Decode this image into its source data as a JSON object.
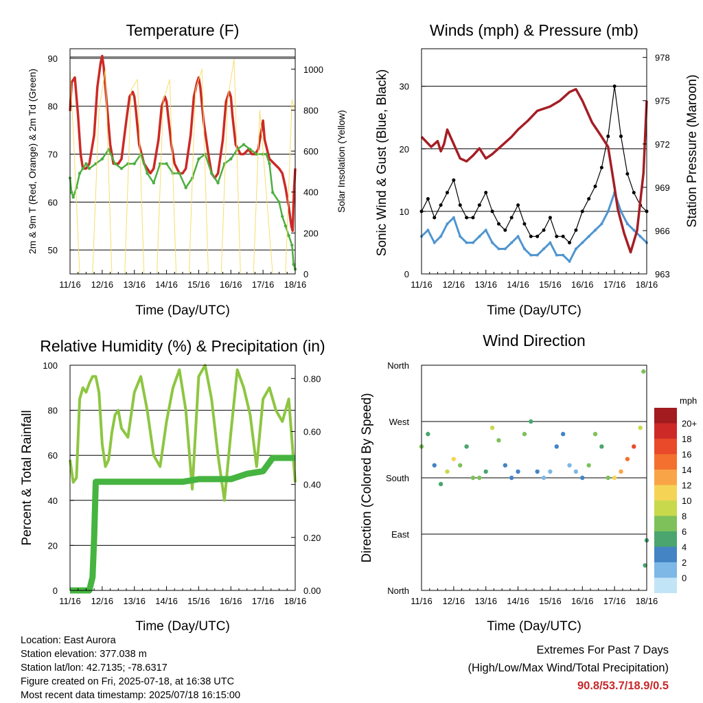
{
  "chart_data": [
    {
      "type": "line",
      "title": "Temperature (F)",
      "xlabel": "Time (Day/UTC)",
      "ylabel": "2m & 9m T (Red, Orange) & 2m Td (Green)",
      "y2label": "Solar Insolation (Yellow)",
      "xticks": [
        "11/16",
        "12/16",
        "13/16",
        "14/16",
        "15/16",
        "16/16",
        "17/16",
        "18/16"
      ],
      "ylim": [
        45,
        92
      ],
      "yticks": [
        50,
        60,
        70,
        80,
        90
      ],
      "y2lim": [
        0,
        1100
      ],
      "y2ticks": [
        0,
        200,
        400,
        600,
        800,
        1000
      ],
      "grid_y": [
        50,
        60,
        70,
        80,
        90
      ],
      "series": [
        {
          "name": "2m T",
          "color": "#cc2a24",
          "x": [
            0,
            0.05,
            0.15,
            0.25,
            0.33,
            0.4,
            0.5,
            0.6,
            0.75,
            0.85,
            0.95,
            1,
            1.05,
            1.15,
            1.25,
            1.35,
            1.5,
            1.6,
            1.75,
            1.85,
            1.95,
            2,
            2.05,
            2.15,
            2.3,
            2.4,
            2.5,
            2.6,
            2.75,
            2.85,
            2.95,
            3,
            3.05,
            3.15,
            3.25,
            3.4,
            3.5,
            3.6,
            3.75,
            3.85,
            3.95,
            4,
            4.05,
            4.15,
            4.3,
            4.4,
            4.5,
            4.6,
            4.75,
            4.85,
            4.95,
            5,
            5.05,
            5.15,
            5.3,
            5.4,
            5.55,
            5.65,
            5.75,
            5.85,
            5.95,
            6,
            6.05,
            6.2,
            6.35,
            6.5,
            6.6,
            6.7,
            6.8,
            6.88,
            6.92,
            6.96,
            7
          ],
          "values": [
            79,
            85,
            86,
            78,
            70,
            67,
            67,
            68,
            74,
            84,
            89,
            90.5,
            88,
            80,
            72,
            68,
            68,
            69,
            77,
            82,
            83,
            82,
            79,
            72,
            68,
            67,
            66,
            67,
            73,
            80,
            82,
            81,
            78,
            72,
            68,
            66,
            66,
            67,
            74,
            82,
            85,
            86,
            84,
            77,
            70,
            66,
            65,
            66,
            73,
            81,
            83,
            82,
            78,
            72,
            70,
            70,
            71,
            70,
            70,
            71,
            75,
            77,
            73,
            69,
            68,
            67,
            66,
            63,
            59,
            55,
            54,
            62,
            67
          ]
        },
        {
          "name": "2m Td",
          "color": "#4cae3e",
          "x": [
            0,
            0.05,
            0.1,
            0.2,
            0.3,
            0.4,
            0.5,
            0.6,
            0.8,
            1,
            1.2,
            1.4,
            1.6,
            1.8,
            2,
            2.2,
            2.4,
            2.6,
            2.8,
            3,
            3.2,
            3.4,
            3.6,
            3.8,
            4,
            4.2,
            4.4,
            4.6,
            4.8,
            5,
            5.2,
            5.4,
            5.6,
            5.8,
            6,
            6.1,
            6.2,
            6.3,
            6.5,
            6.6,
            6.7,
            6.8,
            6.9,
            6.95,
            7
          ],
          "values": [
            65,
            62,
            61,
            63,
            66,
            67,
            68,
            67,
            68,
            69,
            71,
            68,
            67,
            68,
            68,
            70,
            66,
            64,
            68,
            68,
            66,
            66,
            63,
            65,
            69,
            70,
            66,
            64,
            68,
            69,
            71,
            72,
            71,
            70,
            70,
            70,
            68,
            62,
            60,
            57,
            55,
            53,
            51,
            47,
            46
          ]
        },
        {
          "name": "Solar Insolation",
          "color": "#f7dd6c",
          "axis": "y2",
          "x": [
            0,
            0.1,
            0.3,
            0.5,
            0.7,
            0.9,
            1.1,
            1.3,
            1.5,
            1.7,
            1.9,
            2.1,
            2.3,
            2.5,
            2.7,
            2.9,
            3.1,
            3.3,
            3.5,
            3.7,
            3.9,
            4.1,
            4.3,
            4.5,
            4.7,
            4.9,
            5.1,
            5.3,
            5.5,
            5.7,
            5.9,
            6.1,
            6.3,
            6.5,
            6.7,
            6.9,
            7
          ],
          "values": [
            1000,
            700,
            0,
            0,
            0,
            800,
            1000,
            0,
            0,
            0,
            900,
            950,
            0,
            0,
            0,
            850,
            950,
            0,
            0,
            0,
            900,
            1000,
            0,
            0,
            0,
            850,
            1050,
            0,
            0,
            0,
            800,
            400,
            0,
            0,
            0,
            850,
            800
          ]
        }
      ]
    },
    {
      "type": "scatter",
      "title": "Winds (mph) & Pressure (mb)",
      "xlabel": "Time (Day/UTC)",
      "ylabel": "Sonic Wind & Gust (Blue, Black)",
      "y2label": "Station Pressure (Maroon)",
      "xticks": [
        "11/16",
        "12/16",
        "13/16",
        "14/16",
        "15/16",
        "16/16",
        "17/16",
        "18/16"
      ],
      "ylim": [
        0,
        36
      ],
      "yticks": [
        0,
        10,
        20,
        30
      ],
      "y2lim": [
        963,
        978.6
      ],
      "y2ticks": [
        963,
        966,
        969,
        972,
        975,
        978
      ],
      "grid_y": [
        10,
        20,
        30
      ],
      "series": [
        {
          "name": "Wind",
          "color": "#4f95d0",
          "x": [
            0,
            0.2,
            0.4,
            0.6,
            0.8,
            1,
            1.2,
            1.4,
            1.6,
            1.8,
            2,
            2.2,
            2.4,
            2.6,
            2.8,
            3,
            3.2,
            3.4,
            3.6,
            3.8,
            4,
            4.2,
            4.4,
            4.6,
            4.8,
            5,
            5.2,
            5.4,
            5.6,
            5.8,
            6,
            6.2,
            6.4,
            6.6,
            6.8,
            7
          ],
          "values": [
            6,
            7,
            5,
            6,
            8,
            9,
            6,
            5,
            5,
            6,
            7,
            5,
            4,
            4,
            5,
            6,
            4,
            3,
            3,
            4,
            5,
            3,
            3,
            2,
            4,
            5,
            6,
            7,
            8,
            10,
            13,
            10,
            8,
            7,
            6,
            5
          ]
        },
        {
          "name": "Gust",
          "color": "#000000",
          "x": [
            0,
            0.2,
            0.4,
            0.6,
            0.8,
            1,
            1.2,
            1.4,
            1.6,
            1.8,
            2,
            2.2,
            2.4,
            2.6,
            2.8,
            3,
            3.2,
            3.4,
            3.6,
            3.8,
            4,
            4.2,
            4.4,
            4.6,
            4.8,
            5,
            5.2,
            5.4,
            5.6,
            5.8,
            6,
            6.2,
            6.4,
            6.6,
            6.8,
            7
          ],
          "values": [
            10,
            12,
            9,
            11,
            13,
            15,
            11,
            9,
            9,
            11,
            13,
            10,
            8,
            7,
            9,
            11,
            8,
            6,
            6,
            7,
            9,
            6,
            6,
            5,
            7,
            10,
            12,
            14,
            17,
            22,
            30,
            22,
            16,
            13,
            11,
            10
          ]
        },
        {
          "name": "Station Pressure",
          "color": "#a41e24",
          "axis": "y2",
          "x": [
            0,
            0.3,
            0.5,
            0.6,
            0.7,
            0.8,
            1,
            1.2,
            1.4,
            1.6,
            1.8,
            2,
            2.2,
            2.4,
            2.6,
            2.8,
            3,
            3.3,
            3.6,
            4,
            4.3,
            4.6,
            4.8,
            5,
            5.3,
            5.6,
            5.8,
            6,
            6.1,
            6.3,
            6.5,
            6.7,
            6.9,
            7
          ],
          "values": [
            972.5,
            971.8,
            972.2,
            971.5,
            972.0,
            973.0,
            972.0,
            971.0,
            970.8,
            971.2,
            971.7,
            971.0,
            971.3,
            971.7,
            972.1,
            972.5,
            973.0,
            973.6,
            974.3,
            974.6,
            975.0,
            975.6,
            975.8,
            975.0,
            973.5,
            972.5,
            971.8,
            969.0,
            967.5,
            965.8,
            964.5,
            966.0,
            970.0,
            975.0
          ]
        }
      ]
    },
    {
      "type": "line",
      "title": "Relative Humidity (%) & Precipitation (in)",
      "xlabel": "Time (Day/UTC)",
      "ylabel": "Percent & Total Rainfall",
      "xticks": [
        "11/16",
        "12/16",
        "13/16",
        "14/16",
        "15/16",
        "16/16",
        "17/16",
        "18/16"
      ],
      "ylim": [
        0,
        100
      ],
      "yticks": [
        0,
        20,
        40,
        60,
        80,
        100
      ],
      "y2lim": [
        0,
        0.85
      ],
      "y2ticks": [
        "0.00",
        "0.20",
        "0.40",
        "0.60",
        "0.80"
      ],
      "grid_y": [
        20,
        40,
        60,
        80,
        100
      ],
      "series": [
        {
          "name": "Relative Humidity",
          "color": "#8dc641",
          "x": [
            0,
            0.1,
            0.2,
            0.3,
            0.4,
            0.5,
            0.6,
            0.7,
            0.8,
            0.9,
            1,
            1.1,
            1.2,
            1.3,
            1.4,
            1.5,
            1.6,
            1.8,
            2,
            2.2,
            2.4,
            2.6,
            2.8,
            3,
            3.2,
            3.4,
            3.6,
            3.8,
            4,
            4.2,
            4.4,
            4.6,
            4.8,
            5,
            5.2,
            5.4,
            5.6,
            5.8,
            6,
            6.2,
            6.4,
            6.6,
            6.8,
            7
          ],
          "values": [
            58,
            48,
            50,
            85,
            90,
            88,
            92,
            95,
            95,
            88,
            65,
            55,
            58,
            70,
            78,
            80,
            72,
            68,
            88,
            95,
            80,
            60,
            55,
            75,
            90,
            98,
            80,
            45,
            95,
            100,
            85,
            60,
            40,
            70,
            98,
            90,
            78,
            55,
            85,
            90,
            80,
            75,
            85,
            48
          ]
        },
        {
          "name": "Total Rainfall",
          "color": "#46b440",
          "axis": "y2",
          "x": [
            0,
            0.6,
            0.7,
            0.75,
            0.8,
            0.9,
            1,
            2,
            3,
            3.5,
            4,
            5,
            5.5,
            6,
            6.3,
            6.5,
            7
          ],
          "values": [
            0,
            0,
            0.05,
            0.2,
            0.41,
            0.41,
            0.41,
            0.41,
            0.41,
            0.41,
            0.42,
            0.42,
            0.44,
            0.45,
            0.5,
            0.5,
            0.5
          ]
        }
      ]
    },
    {
      "type": "scatter",
      "title": "Wind Direction",
      "xlabel": "Time (Day/UTC)",
      "ylabel": "Direction (Colored By Speed)",
      "xticks": [
        "11/16",
        "12/16",
        "13/16",
        "14/16",
        "15/16",
        "16/16",
        "17/16",
        "18/16"
      ],
      "ylim": [
        0,
        360
      ],
      "ytick_labels": [
        "North",
        "East",
        "South",
        "West",
        "North"
      ],
      "grid_y": [
        90,
        180,
        270
      ],
      "colorbar": {
        "title": "mph",
        "labels": [
          "20+",
          "18",
          "16",
          "14",
          "12",
          "10",
          "8",
          "6",
          "4",
          "2",
          "0"
        ],
        "colors": [
          "#a11b1f",
          "#cd2a27",
          "#e84a2a",
          "#f3702f",
          "#f9a447",
          "#f5d455",
          "#c9d94c",
          "#7ec05a",
          "#4aa56e",
          "#4484c4",
          "#7db8e6",
          "#c2e4f7"
        ]
      },
      "series": [
        {
          "name": "Direction",
          "x": [
            0,
            0.2,
            0.4,
            0.6,
            0.8,
            1,
            1.2,
            1.4,
            1.6,
            1.8,
            2,
            2.2,
            2.4,
            2.6,
            2.8,
            3,
            3.2,
            3.4,
            3.6,
            3.8,
            4,
            4.2,
            4.4,
            4.6,
            4.8,
            5,
            5.2,
            5.4,
            5.6,
            5.8,
            6,
            6.2,
            6.4,
            6.6,
            6.8,
            6.9,
            6.95,
            7
          ],
          "values": [
            230,
            250,
            200,
            170,
            190,
            210,
            200,
            230,
            180,
            180,
            190,
            260,
            240,
            200,
            180,
            190,
            250,
            270,
            190,
            180,
            190,
            230,
            250,
            200,
            190,
            180,
            200,
            250,
            230,
            180,
            180,
            190,
            210,
            230,
            260,
            350,
            40,
            80
          ],
          "speeds": [
            8,
            6,
            4,
            6,
            10,
            12,
            8,
            6,
            8,
            8,
            6,
            10,
            8,
            4,
            4,
            4,
            8,
            6,
            4,
            2,
            2,
            4,
            4,
            2,
            2,
            4,
            8,
            8,
            6,
            8,
            12,
            14,
            16,
            18,
            10,
            8,
            6,
            6
          ]
        }
      ]
    }
  ],
  "info": {
    "location": "Location: East Aurora",
    "elevation": "Station elevation: 377.038 m",
    "latlon": "Station lat/lon: 42.7135; -78.6317",
    "created": "Figure created on Fri, 2025-07-18, at 16:38 UTC",
    "recent": "Most recent data timestamp: 2025/07/18 16:15:00"
  },
  "extremes": {
    "title": "Extremes For Past 7 Days",
    "subtitle": "(High/Low/Max Wind/Total Precipitation)",
    "values": "90.8/53.7/18.9/0.5"
  }
}
